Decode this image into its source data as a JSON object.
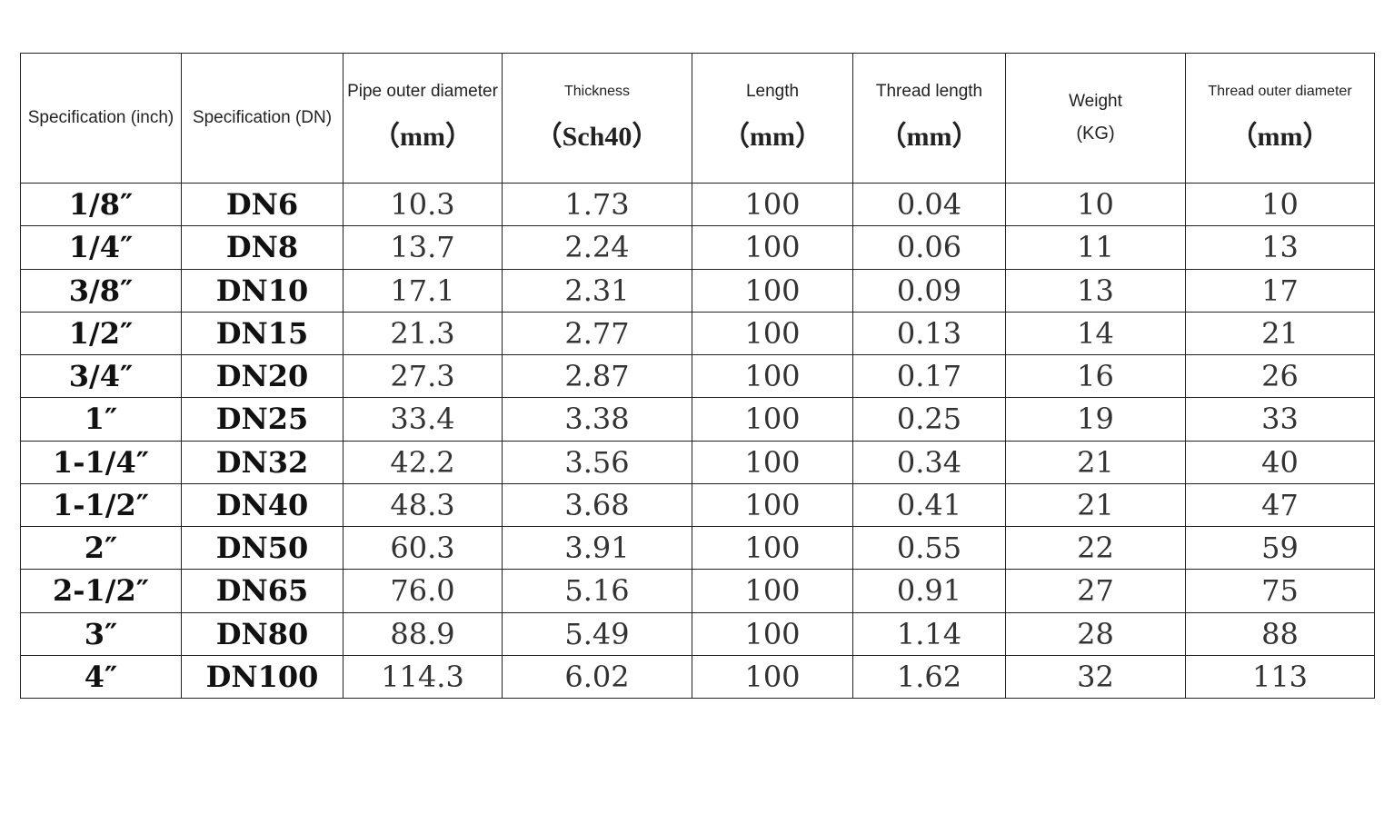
{
  "table": {
    "header": [
      {
        "label": "Specification (inch)"
      },
      {
        "label": "Specification (DN)"
      },
      {
        "label": "Pipe outer diameter",
        "unit": "（mm）"
      },
      {
        "label": "Thickness",
        "unit": "（Sch40）"
      },
      {
        "label": "Length",
        "unit": "（mm）"
      },
      {
        "label": "Thread length",
        "unit": "（mm）"
      },
      {
        "label": "Weight",
        "unit": "(KG)"
      },
      {
        "label": "Thread outer diameter",
        "unit": "（mm）"
      }
    ],
    "rows": [
      [
        "1/8″",
        "DN6",
        "10.3",
        "1.73",
        "100",
        "0.04",
        "10",
        "10"
      ],
      [
        "1/4″",
        "DN8",
        "13.7",
        "2.24",
        "100",
        "0.06",
        "11",
        "13"
      ],
      [
        "3/8″",
        "DN10",
        "17.1",
        "2.31",
        "100",
        "0.09",
        "13",
        "17"
      ],
      [
        "1/2″",
        "DN15",
        "21.3",
        "2.77",
        "100",
        "0.13",
        "14",
        "21"
      ],
      [
        "3/4″",
        "DN20",
        "27.3",
        "2.87",
        "100",
        "0.17",
        "16",
        "26"
      ],
      [
        "1″",
        "DN25",
        "33.4",
        "3.38",
        "100",
        "0.25",
        "19",
        "33"
      ],
      [
        "1-1/4″",
        "DN32",
        "42.2",
        "3.56",
        "100",
        "0.34",
        "21",
        "40"
      ],
      [
        "1-1/2″",
        "DN40",
        "48.3",
        "3.68",
        "100",
        "0.41",
        "21",
        "47"
      ],
      [
        "2″",
        "DN50",
        "60.3",
        "3.91",
        "100",
        "0.55",
        "22",
        "59"
      ],
      [
        "2-1/2″",
        "DN65",
        "76.0",
        "5.16",
        "100",
        "0.91",
        "27",
        "75"
      ],
      [
        "3″",
        "DN80",
        "88.9",
        "5.49",
        "100",
        "1.14",
        "28",
        "88"
      ],
      [
        "4″",
        "DN100",
        "114.3",
        "6.02",
        "100",
        "1.62",
        "32",
        "113"
      ]
    ]
  }
}
